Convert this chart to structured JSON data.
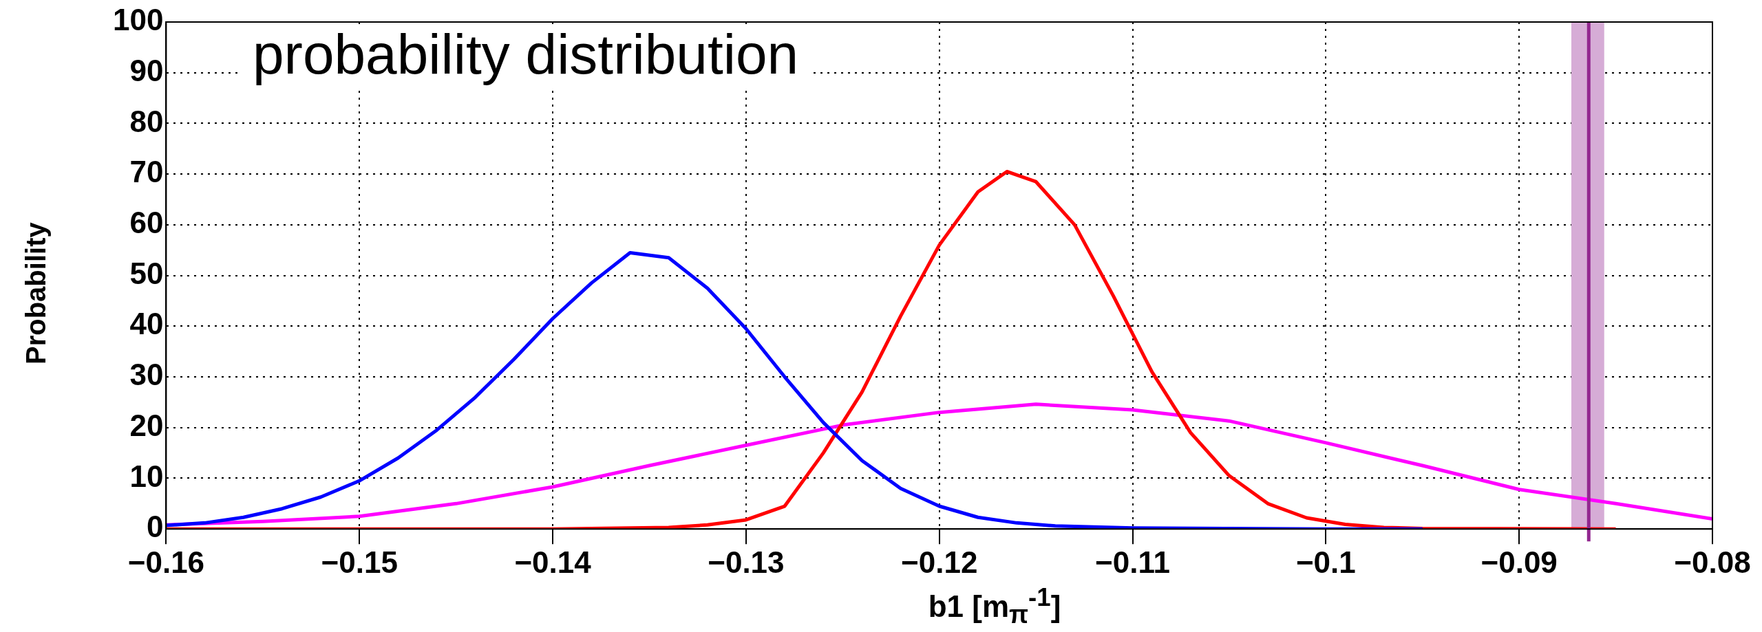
{
  "chart_data": {
    "type": "line",
    "title": "probability distribution",
    "xlabel": "b1 [m$_{π}$$^{-1}$]",
    "ylabel": "Probability",
    "xlim": [
      -0.16,
      -0.08
    ],
    "xticks": [
      -0.16,
      -0.15,
      -0.14,
      -0.13,
      -0.12,
      -0.11,
      -0.1,
      -0.09,
      -0.08
    ],
    "ylim": [
      0,
      100
    ],
    "yticks": [
      0,
      10,
      20,
      30,
      40,
      50,
      60,
      70,
      80,
      90,
      100
    ],
    "grid": true,
    "legend": false,
    "marker": "none",
    "line_style": "solid",
    "series": [
      {
        "color": "#0000ff",
        "x": [
          -0.16,
          -0.158,
          -0.156,
          -0.154,
          -0.152,
          -0.15,
          -0.148,
          -0.146,
          -0.144,
          -0.142,
          -0.14,
          -0.138,
          -0.136,
          -0.134,
          -0.132,
          -0.13,
          -0.128,
          -0.126,
          -0.124,
          -0.122,
          -0.12,
          -0.118,
          -0.116,
          -0.114,
          -0.11,
          -0.105,
          -0.1,
          -0.095
        ],
        "values": [
          0.7,
          1.2,
          2.3,
          4,
          6.3,
          9.5,
          14,
          19.5,
          26,
          33.5,
          41.5,
          48.5,
          54.5,
          53.5,
          47.5,
          39.5,
          30,
          21,
          13.5,
          8,
          4.5,
          2.3,
          1.2,
          0.6,
          0.2,
          0.1,
          0,
          0
        ]
      },
      {
        "color": "#ff0000",
        "x": [
          -0.16,
          -0.14,
          -0.134,
          -0.132,
          -0.13,
          -0.128,
          -0.126,
          -0.124,
          -0.122,
          -0.12,
          -0.118,
          -0.1165,
          -0.115,
          -0.113,
          -0.111,
          -0.109,
          -0.107,
          -0.105,
          -0.103,
          -0.101,
          -0.099,
          -0.097,
          -0.095,
          -0.085
        ],
        "values": [
          0,
          0,
          0.3,
          0.8,
          1.8,
          4.5,
          15,
          27,
          42,
          56,
          66.5,
          70.5,
          68.5,
          60,
          46,
          31,
          19,
          10.5,
          5,
          2.2,
          0.9,
          0.3,
          0.1,
          0
        ]
      },
      {
        "color": "#ff00ff",
        "x": [
          -0.16,
          -0.155,
          -0.15,
          -0.145,
          -0.14,
          -0.135,
          -0.13,
          -0.125,
          -0.12,
          -0.115,
          -0.11,
          -0.105,
          -0.1,
          -0.095,
          -0.09,
          -0.085,
          -0.08
        ],
        "values": [
          0.8,
          1.5,
          2.5,
          5,
          8.3,
          12.5,
          16.5,
          20.5,
          23,
          24.6,
          23.5,
          21.3,
          17,
          12.5,
          7.8,
          5,
          2
        ]
      }
    ],
    "ref_lines": [
      {
        "axis": "x",
        "value": -0.0864,
        "color": "#92278f"
      }
    ],
    "bands": [
      {
        "axis": "x",
        "from": -0.0873,
        "to": -0.0856,
        "color": "#d6acd6"
      }
    ]
  }
}
